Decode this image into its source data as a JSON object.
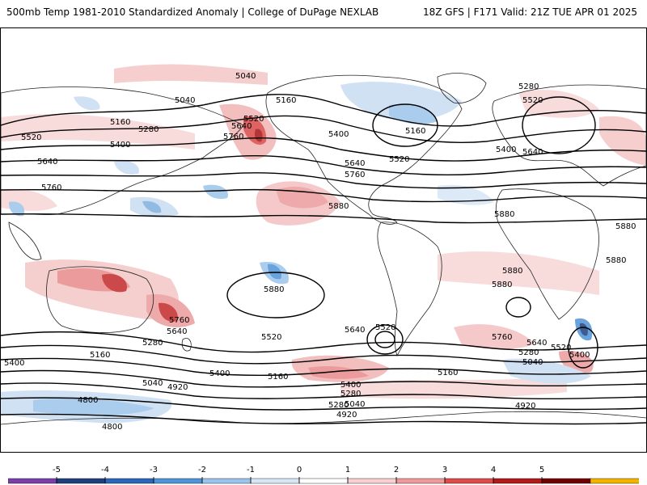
{
  "header": {
    "title": "500mb Temp 1981-2010 Standardized Anomaly | College of DuPage NEXLAB",
    "valid": "18Z GFS | F171 Valid: 21Z TUE APR 01 2025"
  },
  "map": {
    "contour_labels": [
      {
        "text": "5040",
        "id": "c1"
      },
      {
        "text": "5040",
        "id": "c2"
      },
      {
        "text": "5160",
        "id": "c3"
      },
      {
        "text": "5160",
        "id": "c4"
      },
      {
        "text": "5280",
        "id": "c5"
      },
      {
        "text": "5280",
        "id": "c6"
      },
      {
        "text": "5400",
        "id": "c7"
      },
      {
        "text": "5400",
        "id": "c8"
      },
      {
        "text": "5520",
        "id": "c9"
      },
      {
        "text": "5520",
        "id": "c10"
      },
      {
        "text": "5520",
        "id": "c11"
      },
      {
        "text": "5640",
        "id": "c12"
      },
      {
        "text": "5640",
        "id": "c13"
      },
      {
        "text": "5640",
        "id": "c14"
      },
      {
        "text": "5760",
        "id": "c15"
      },
      {
        "text": "5760",
        "id": "c16"
      },
      {
        "text": "5760",
        "id": "c17"
      },
      {
        "text": "5880",
        "id": "c18"
      },
      {
        "text": "5880",
        "id": "c19"
      },
      {
        "text": "5880",
        "id": "c20"
      },
      {
        "text": "5880",
        "id": "c21"
      },
      {
        "text": "5880",
        "id": "c22"
      },
      {
        "text": "5880",
        "id": "c23"
      },
      {
        "text": "5880",
        "id": "c24"
      },
      {
        "text": "5760",
        "id": "c25"
      },
      {
        "text": "5640",
        "id": "c26"
      },
      {
        "text": "5520",
        "id": "c27"
      },
      {
        "text": "5400",
        "id": "c28"
      },
      {
        "text": "5280",
        "id": "c29"
      },
      {
        "text": "5160",
        "id": "c30"
      },
      {
        "text": "5040",
        "id": "c31"
      },
      {
        "text": "4920",
        "id": "c32"
      },
      {
        "text": "4800",
        "id": "c33"
      },
      {
        "text": "4800",
        "id": "c34"
      },
      {
        "text": "5520",
        "id": "c35"
      },
      {
        "text": "5640",
        "id": "c36"
      },
      {
        "text": "5280",
        "id": "c37"
      },
      {
        "text": "5400",
        "id": "c38"
      },
      {
        "text": "5160",
        "id": "c39"
      },
      {
        "text": "5040",
        "id": "c40"
      },
      {
        "text": "5400",
        "id": "c41"
      },
      {
        "text": "5160",
        "id": "c42"
      },
      {
        "text": "4920",
        "id": "c43"
      },
      {
        "text": "5280",
        "id": "c44"
      },
      {
        "text": "5400",
        "id": "c45"
      },
      {
        "text": "5520",
        "id": "c46"
      },
      {
        "text": "5640",
        "id": "c47"
      },
      {
        "text": "5760",
        "id": "c48"
      },
      {
        "text": "5640",
        "id": "c49"
      },
      {
        "text": "5520",
        "id": "c50"
      },
      {
        "text": "5400",
        "id": "c51"
      },
      {
        "text": "5280",
        "id": "c52"
      },
      {
        "text": "5160",
        "id": "c53"
      },
      {
        "text": "5040",
        "id": "c54"
      },
      {
        "text": "4920",
        "id": "c55"
      }
    ]
  },
  "legend": {
    "ticks": [
      "-5",
      "-4",
      "-3",
      "-2",
      "-1",
      "0",
      "1",
      "2",
      "3",
      "4",
      "5"
    ],
    "colors": [
      "#7a3fa8",
      "#1f3f7a",
      "#2b66b8",
      "#4f93d8",
      "#9cc4ea",
      "#d6e6f5",
      "#ffffff",
      "#f7d0d0",
      "#ee9a9a",
      "#dd4c4c",
      "#b01a1a",
      "#6e0000",
      "#f2b400"
    ]
  }
}
